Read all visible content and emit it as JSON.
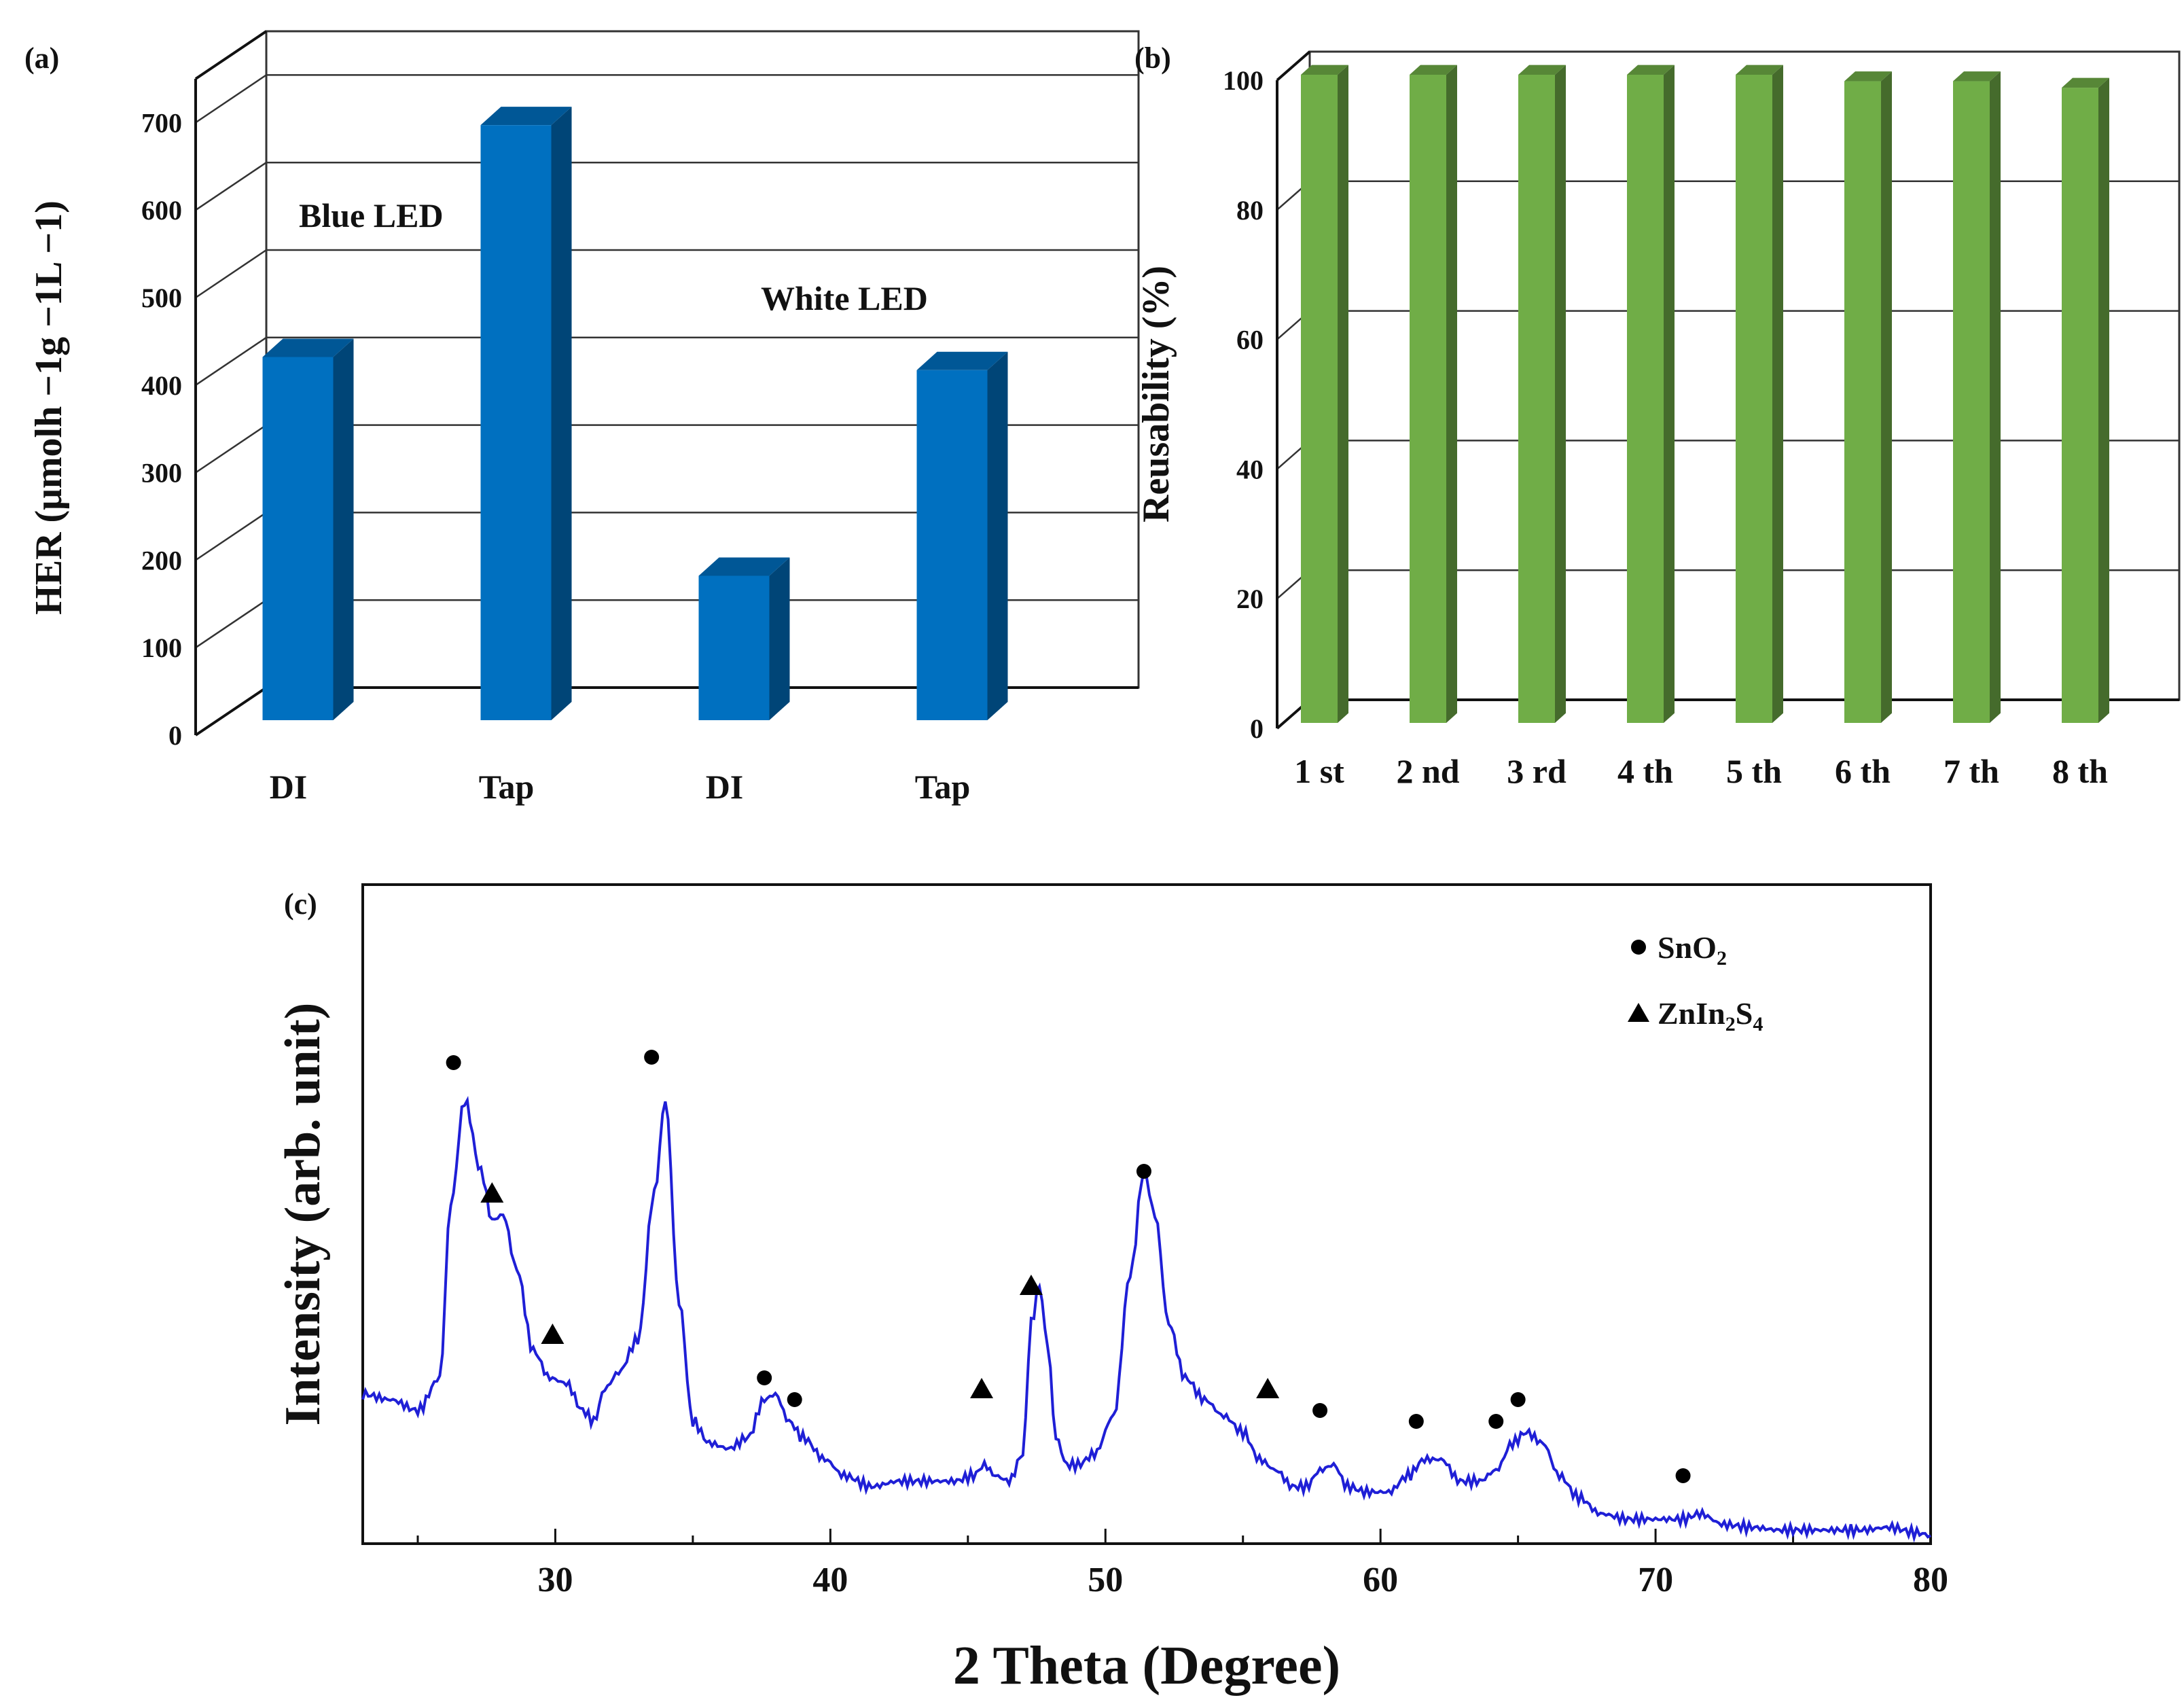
{
  "chart_data": [
    {
      "panel": "(a)",
      "type": "bar",
      "categories": [
        "DI",
        "Tap",
        "DI",
        "Tap"
      ],
      "values": [
        415,
        680,
        165,
        400
      ],
      "groups": [
        "Blue LED",
        "White LED"
      ],
      "group_of_category": [
        0,
        0,
        1,
        1
      ],
      "ylabel": "HER (μmolh −1g −1L −1)",
      "yticks": [
        "0",
        "100",
        "200",
        "300",
        "400",
        "500",
        "600",
        "700"
      ],
      "ylim": [
        0,
        750
      ],
      "color": "#0070c0"
    },
    {
      "panel": "(b)",
      "type": "bar",
      "categories": [
        "1 st",
        "2 nd",
        "3 rd",
        "4 th",
        "5 th",
        "6 th",
        "7 th",
        "8 th"
      ],
      "values": [
        100,
        100,
        100,
        100,
        100,
        99,
        99,
        98
      ],
      "ylabel": "Reusability (%)",
      "yticks": [
        "0",
        "20",
        "40",
        "60",
        "80",
        "100"
      ],
      "ylim": [
        0,
        100
      ],
      "color": "#70ad47"
    },
    {
      "panel": "(c)",
      "type": "line",
      "xlabel": "2 Theta (Degree)",
      "ylabel": "Intensity (arb. unit)",
      "xlim": [
        23,
        80
      ],
      "ylim": [
        0,
        100
      ],
      "xticks": [
        "30",
        "40",
        "50",
        "60",
        "70",
        "80"
      ],
      "color": "#1f1fd6",
      "x": [
        23,
        24,
        25,
        25.8,
        26.2,
        26.7,
        27.3,
        27.7,
        28.1,
        28.6,
        29.2,
        29.8,
        30.4,
        31.0,
        31.4,
        31.8,
        32.3,
        33.0,
        33.6,
        34.0,
        34.5,
        35.0,
        35.6,
        36.3,
        37.0,
        37.6,
        38.0,
        38.5,
        39.0,
        39.8,
        40.5,
        41.5,
        42.5,
        43.5,
        44.5,
        45.2,
        45.6,
        46.0,
        46.5,
        47.0,
        47.3,
        47.6,
        47.9,
        48.2,
        48.6,
        49.0,
        49.6,
        50.3,
        50.9,
        51.4,
        51.8,
        52.3,
        52.9,
        53.6,
        54.3,
        55.0,
        55.6,
        56.2,
        56.8,
        57.3,
        57.8,
        58.3,
        58.8,
        59.5,
        60.3,
        61.0,
        61.6,
        62.2,
        62.9,
        63.6,
        64.2,
        64.8,
        65.3,
        65.9,
        66.5,
        67.2,
        68.0,
        69.0,
        70.0,
        71.0,
        71.6,
        72.5,
        73.5,
        74.5,
        75.5,
        76.5,
        77.5,
        78.5,
        79.5,
        80
      ],
      "y": [
        25,
        24,
        22,
        28,
        60,
        79,
        66,
        57,
        58,
        48,
        33,
        28,
        27,
        22,
        20,
        26,
        29,
        35,
        62,
        79,
        42,
        20,
        16,
        15,
        17,
        24,
        25,
        20,
        17,
        13,
        10,
        8,
        9,
        9,
        9,
        10,
        12,
        10,
        9,
        14,
        38,
        45,
        34,
        17,
        12,
        12,
        14,
        21,
        47,
        66,
        58,
        38,
        28,
        24,
        21,
        18,
        13,
        11,
        8,
        8,
        11,
        12,
        8,
        7,
        7,
        10,
        13,
        13,
        9,
        9,
        11,
        16,
        18,
        16,
        10,
        6,
        3,
        2,
        2,
        2,
        3,
        1,
        0.5,
        0,
        0,
        0,
        0,
        0.5,
        -0.5,
        -1
      ],
      "markers": [
        {
          "phase": "SnO2",
          "x": 26.3,
          "y": 86
        },
        {
          "phase": "ZnIn2S4",
          "x": 27.7,
          "y": 62
        },
        {
          "phase": "ZnIn2S4",
          "x": 29.9,
          "y": 36
        },
        {
          "phase": "SnO2",
          "x": 33.5,
          "y": 87
        },
        {
          "phase": "SnO2",
          "x": 37.6,
          "y": 28
        },
        {
          "phase": "SnO2",
          "x": 38.7,
          "y": 24
        },
        {
          "phase": "ZnIn2S4",
          "x": 45.5,
          "y": 26
        },
        {
          "phase": "ZnIn2S4",
          "x": 47.3,
          "y": 45
        },
        {
          "phase": "SnO2",
          "x": 51.4,
          "y": 66
        },
        {
          "phase": "ZnIn2S4",
          "x": 55.9,
          "y": 26
        },
        {
          "phase": "SnO2",
          "x": 57.8,
          "y": 22
        },
        {
          "phase": "SnO2",
          "x": 61.3,
          "y": 20
        },
        {
          "phase": "SnO2",
          "x": 64.2,
          "y": 20
        },
        {
          "phase": "SnO2",
          "x": 65.0,
          "y": 24
        },
        {
          "phase": "SnO2",
          "x": 71.0,
          "y": 10
        }
      ],
      "legend": [
        {
          "symbol": "circle",
          "base": "SnO",
          "sub1": "2",
          "mid": "",
          "sub2": ""
        },
        {
          "symbol": "triangle",
          "base": "ZnIn",
          "sub1": "2",
          "mid": "S",
          "sub2": "4"
        }
      ],
      "legend_position": "top-right"
    }
  ]
}
